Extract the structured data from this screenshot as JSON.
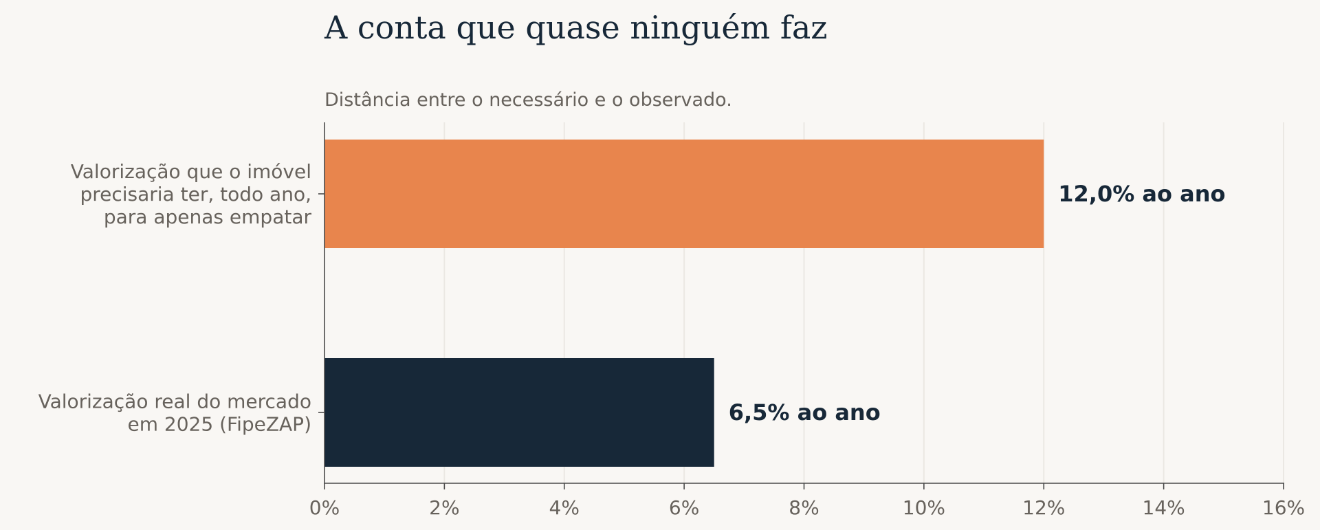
{
  "chart_data": {
    "type": "bar",
    "orientation": "horizontal",
    "title": "A conta que quase ninguém faz",
    "subtitle": "Distância entre o necessário e o observado.",
    "categories": [
      [
        "Valorização que o imóvel",
        "precisaria ter, todo ano,",
        "para apenas empatar"
      ],
      [
        "Valorização real do mercado",
        "em 2025 (FipeZAP)"
      ]
    ],
    "values": [
      12.0,
      6.5
    ],
    "data_labels": [
      "12,0% ao ano",
      "6,5% ao ano"
    ],
    "colors": [
      "#e8854d",
      "#172838"
    ],
    "xlim": [
      0,
      16
    ],
    "xticks": [
      0,
      2,
      4,
      6,
      8,
      10,
      12,
      14,
      16
    ],
    "xtick_labels": [
      "0%",
      "2%",
      "4%",
      "6%",
      "8%",
      "10%",
      "12%",
      "14%",
      "16%"
    ],
    "grid": "vertical",
    "xlabel": "",
    "ylabel": ""
  }
}
